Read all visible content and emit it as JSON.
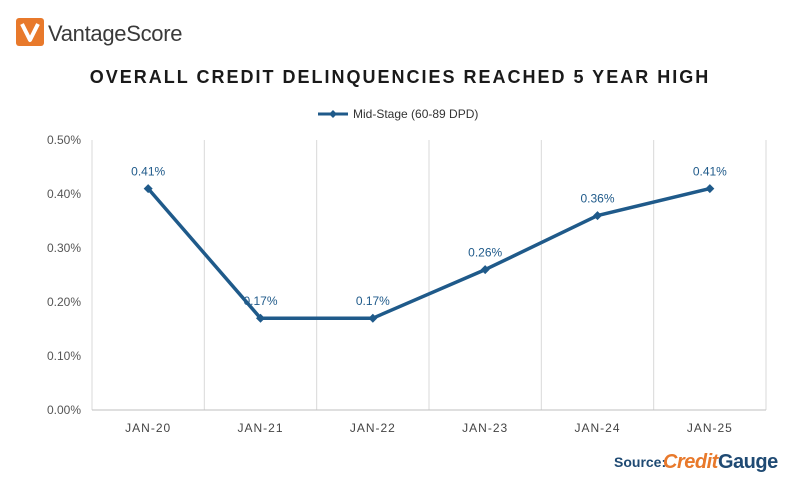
{
  "brand": {
    "name": "VantageScore",
    "logo_color": "#e8792b"
  },
  "source": {
    "label": "Source:",
    "brand_part1": "Credit",
    "brand_part2": "Gauge"
  },
  "colors": {
    "series": "#1f5a8a",
    "grid": "#d9d9d9",
    "axis": "#bfbfbf"
  },
  "chart_data": {
    "type": "line",
    "title": "OVERALL CREDIT DELINQUENCIES REACHED 5 YEAR HIGH",
    "xlabel": "",
    "ylabel": "",
    "categories": [
      "JAN-20",
      "JAN-21",
      "JAN-22",
      "JAN-23",
      "JAN-24",
      "JAN-25"
    ],
    "series": [
      {
        "name": "Mid-Stage (60-89 DPD)",
        "values": [
          0.41,
          0.17,
          0.17,
          0.26,
          0.36,
          0.41
        ],
        "labels": [
          "0.41%",
          "0.17%",
          "0.17%",
          "0.26%",
          "0.36%",
          "0.41%"
        ]
      }
    ],
    "ylim": [
      0,
      0.5
    ],
    "yticks": [
      "0.00%",
      "0.10%",
      "0.20%",
      "0.30%",
      "0.40%",
      "0.50%"
    ],
    "legend_position": "top-center",
    "grid": "vertical"
  }
}
